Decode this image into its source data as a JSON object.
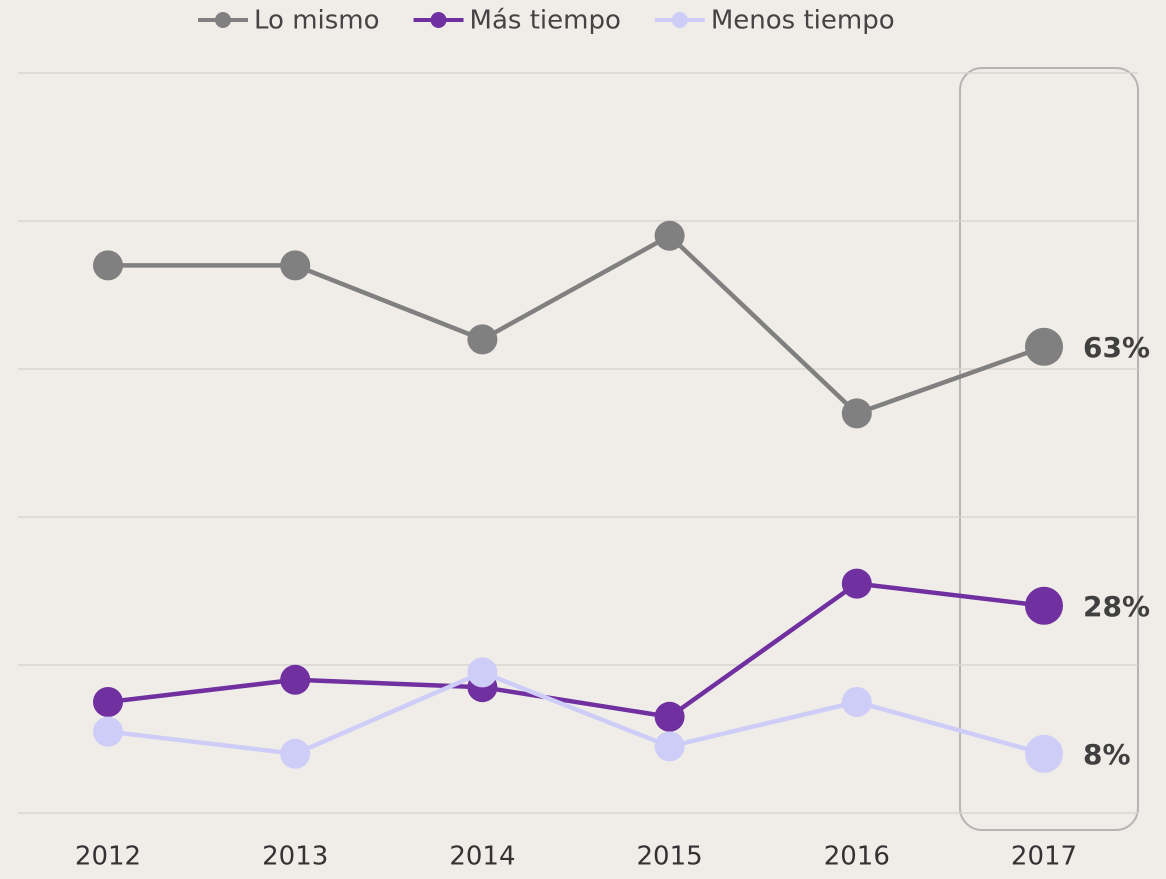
{
  "chart_data": {
    "type": "line",
    "categories": [
      "2012",
      "2013",
      "2014",
      "2015",
      "2016",
      "2017"
    ],
    "series": [
      {
        "name": "Lo mismo",
        "color": "#808080",
        "values": [
          74,
          74,
          64,
          78,
          54,
          63
        ],
        "value_labels": [
          null,
          null,
          null,
          null,
          null,
          "63%"
        ]
      },
      {
        "name": "Más tiempo",
        "color": "#7030a0",
        "values": [
          15,
          18,
          17,
          13,
          31,
          28
        ],
        "value_labels": [
          null,
          null,
          null,
          null,
          null,
          "28%"
        ]
      },
      {
        "name": "Menos tiempo",
        "color": "#cdcdf7",
        "values": [
          11,
          8,
          19,
          9,
          15,
          8
        ],
        "value_labels": [
          null,
          null,
          null,
          null,
          null,
          "8%"
        ]
      }
    ],
    "ylim": [
      0,
      100
    ],
    "yticks": [
      0,
      20,
      40,
      60,
      80,
      100
    ],
    "grid": true,
    "legend": "top"
  }
}
